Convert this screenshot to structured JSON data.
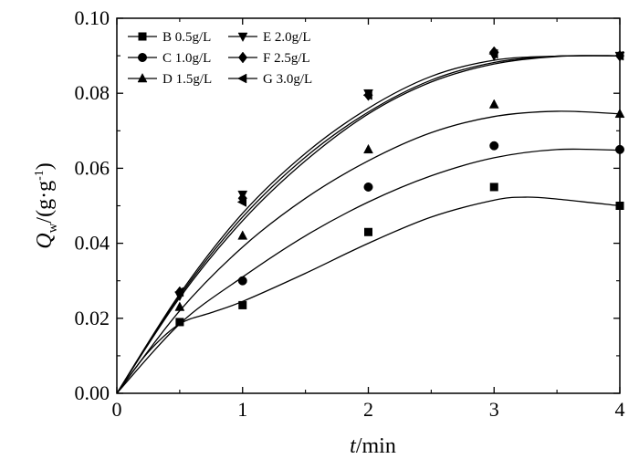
{
  "chart_data": {
    "type": "scatter",
    "x_ticks": [
      "0",
      "1",
      "2",
      "3",
      "4"
    ],
    "y_ticks": [
      "0.00",
      "0.02",
      "0.04",
      "0.06",
      "0.08",
      "0.10"
    ],
    "xlim": [
      0,
      4
    ],
    "ylim": [
      0,
      0.1
    ],
    "xlabel": {
      "var": "t",
      "unit": "/min"
    },
    "ylabel": {
      "var": "Q",
      "sub": "w",
      "unit": "/(g·g",
      "sup": "-1",
      "close": ")"
    },
    "legend_position": "top-left",
    "grid": false,
    "series": [
      {
        "name": "B 0.5g/L",
        "marker": "square",
        "x": [
          0,
          0.5,
          1,
          2,
          3,
          4
        ],
        "y": [
          0,
          0.019,
          0.0235,
          0.043,
          0.055,
          0.05
        ],
        "fit": [
          [
            0,
            0
          ],
          [
            0.25,
            0.011
          ],
          [
            0.5,
            0.0185
          ],
          [
            0.75,
            0.0215
          ],
          [
            1,
            0.0245
          ],
          [
            1.5,
            0.032
          ],
          [
            2,
            0.04
          ],
          [
            2.5,
            0.047
          ],
          [
            3,
            0.0515
          ],
          [
            3.25,
            0.0523
          ],
          [
            3.5,
            0.0518
          ],
          [
            4,
            0.05
          ]
        ]
      },
      {
        "name": "C 1.0g/L",
        "marker": "circle",
        "x": [
          0,
          1,
          2,
          3,
          4
        ],
        "y": [
          0,
          0.03,
          0.055,
          0.066,
          0.065
        ],
        "fit": [
          [
            0,
            0
          ],
          [
            0.5,
            0.0185
          ],
          [
            1,
            0.031
          ],
          [
            1.5,
            0.042
          ],
          [
            2,
            0.051
          ],
          [
            2.5,
            0.058
          ],
          [
            3,
            0.0628
          ],
          [
            3.5,
            0.065
          ],
          [
            4,
            0.0648
          ]
        ]
      },
      {
        "name": "D 1.5g/L",
        "marker": "triangle-up",
        "x": [
          0,
          0.5,
          1,
          2,
          3,
          4
        ],
        "y": [
          0,
          0.023,
          0.042,
          0.065,
          0.077,
          0.0745
        ],
        "fit": [
          [
            0,
            0
          ],
          [
            0.5,
            0.022
          ],
          [
            1,
            0.039
          ],
          [
            1.5,
            0.052
          ],
          [
            2,
            0.062
          ],
          [
            2.5,
            0.0695
          ],
          [
            3,
            0.0738
          ],
          [
            3.5,
            0.0752
          ],
          [
            4,
            0.0745
          ]
        ]
      },
      {
        "name": "E 2.0g/L",
        "marker": "triangle-down",
        "x": [
          0,
          0.5,
          1,
          2,
          3,
          4
        ],
        "y": [
          0,
          0.026,
          0.053,
          0.08,
          0.09,
          0.09
        ],
        "fit": [
          [
            0,
            0
          ],
          [
            0.5,
            0.0265
          ],
          [
            1,
            0.048
          ],
          [
            1.5,
            0.064
          ],
          [
            2,
            0.076
          ],
          [
            2.5,
            0.0845
          ],
          [
            3,
            0.0888
          ],
          [
            3.5,
            0.0899
          ],
          [
            4,
            0.09
          ]
        ]
      },
      {
        "name": "F 2.5g/L",
        "marker": "diamond",
        "x": [
          0,
          0.5,
          1,
          2,
          3,
          4
        ],
        "y": [
          0,
          0.027,
          0.052,
          0.0795,
          0.091,
          0.09
        ],
        "fit": [
          [
            0,
            0
          ],
          [
            0.5,
            0.026
          ],
          [
            1,
            0.047
          ],
          [
            1.5,
            0.063
          ],
          [
            2,
            0.075
          ],
          [
            2.5,
            0.0835
          ],
          [
            3,
            0.0882
          ],
          [
            3.5,
            0.0899
          ],
          [
            4,
            0.09
          ]
        ]
      },
      {
        "name": "G 3.0g/L",
        "marker": "triangle-left",
        "x": [
          0,
          0.5,
          1,
          2,
          3,
          4
        ],
        "y": [
          0,
          0.027,
          0.051,
          0.0795,
          0.0905,
          0.09
        ],
        "fit": [
          [
            0,
            0
          ],
          [
            0.5,
            0.0255
          ],
          [
            1,
            0.046
          ],
          [
            1.5,
            0.062
          ],
          [
            2,
            0.0745
          ],
          [
            2.5,
            0.083
          ],
          [
            3,
            0.0878
          ],
          [
            3.5,
            0.0898
          ],
          [
            4,
            0.09
          ]
        ]
      }
    ]
  }
}
